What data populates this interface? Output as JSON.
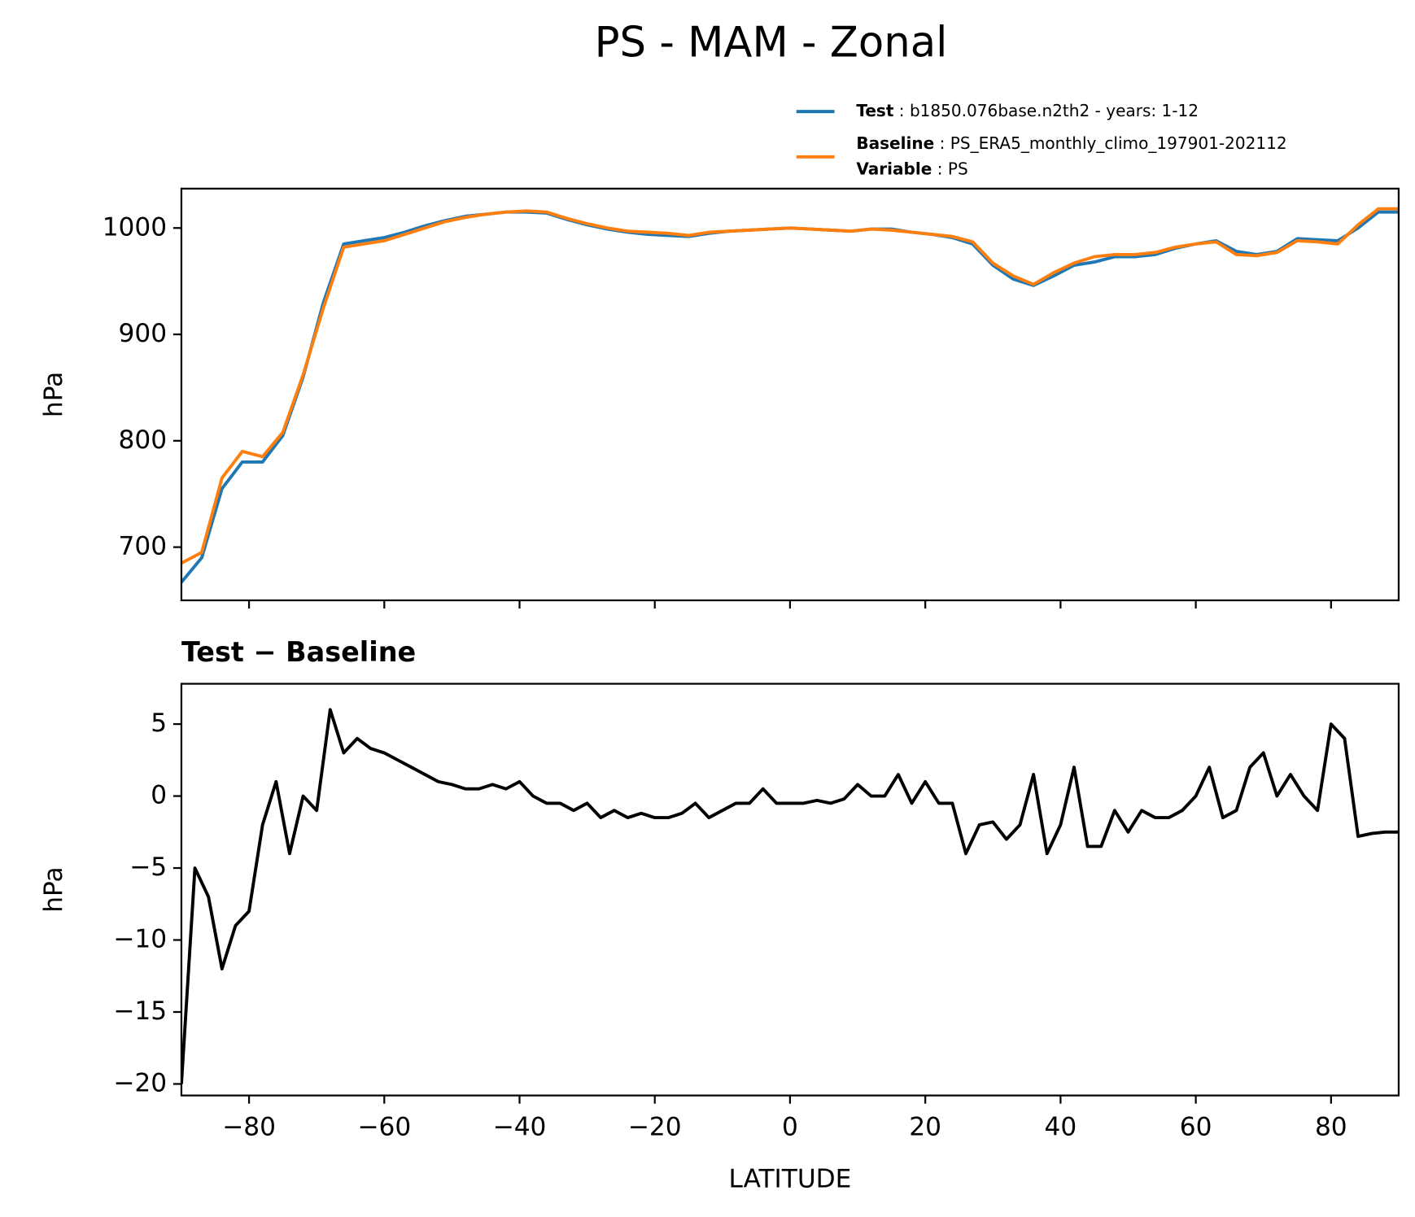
{
  "title": "PS - MAM - Zonal",
  "chart_data": [
    {
      "type": "line",
      "ylabel": "hPa",
      "xlim": [
        -90,
        90
      ],
      "ylim": [
        650,
        1037
      ],
      "xticks": [
        -80,
        -60,
        -40,
        -20,
        0,
        20,
        40,
        60,
        80
      ],
      "xtick_labels": false,
      "yticks": [
        700,
        800,
        900,
        1000
      ],
      "grid": false,
      "x": [
        -90,
        -87,
        -84,
        -81,
        -78,
        -75,
        -72,
        -69,
        -66,
        -63,
        -60,
        -57,
        -54,
        -51,
        -48,
        -45,
        -42,
        -39,
        -36,
        -33,
        -30,
        -27,
        -24,
        -21,
        -18,
        -15,
        -12,
        -9,
        -6,
        -3,
        0,
        3,
        6,
        9,
        12,
        15,
        18,
        21,
        24,
        27,
        30,
        33,
        36,
        39,
        42,
        45,
        48,
        51,
        54,
        57,
        60,
        63,
        66,
        69,
        72,
        75,
        78,
        81,
        84,
        87,
        90
      ],
      "series": [
        {
          "name": "Test",
          "label": "b1850.076base.n2th2 - years: 1-12",
          "color": "#1f77b4",
          "values": [
            667,
            690,
            755,
            780,
            780,
            805,
            860,
            930,
            985,
            988,
            991,
            996,
            1002,
            1007,
            1011,
            1013,
            1015,
            1015,
            1014,
            1008,
            1003,
            999,
            996,
            994,
            993,
            992,
            995,
            997,
            998,
            999,
            1000,
            999,
            998,
            997,
            999,
            999,
            996,
            994,
            991,
            985,
            965,
            952,
            946,
            955,
            965,
            968,
            973,
            973,
            975,
            981,
            985,
            988,
            978,
            975,
            978,
            990,
            989,
            988,
            1000,
            1015,
            1015
          ]
        },
        {
          "name": "Baseline",
          "label": "PS_ERA5_monthly_climo_197901-202112",
          "color": "#ff7f0e",
          "values": [
            685,
            695,
            765,
            790,
            785,
            808,
            862,
            925,
            982,
            985,
            988,
            994,
            1000,
            1006,
            1010,
            1013,
            1015,
            1016,
            1015,
            1009,
            1004,
            1000,
            997,
            996,
            995,
            993,
            996,
            997,
            998,
            999,
            1000,
            999,
            998,
            997,
            999,
            998,
            996,
            994,
            992,
            987,
            967,
            955,
            947,
            958,
            967,
            973,
            975,
            975,
            977,
            982,
            985,
            987,
            975,
            974,
            977,
            988,
            987,
            985,
            1003,
            1018,
            1018
          ]
        }
      ],
      "legend_note": {
        "name": "Variable",
        "label": "PS"
      }
    },
    {
      "type": "line",
      "title": "Test − Baseline",
      "ylabel": "hPa",
      "xlabel": "LATITUDE",
      "xlim": [
        -90,
        90
      ],
      "ylim": [
        -20.8,
        7.8
      ],
      "xticks": [
        {
          "value": -80,
          "label": "−80"
        },
        {
          "value": -60,
          "label": "−60"
        },
        {
          "value": -40,
          "label": "−40"
        },
        {
          "value": -20,
          "label": "−20"
        },
        0,
        20,
        40,
        60,
        80
      ],
      "yticks": [
        {
          "value": -20,
          "label": "−20"
        },
        {
          "value": -15,
          "label": "−15"
        },
        {
          "value": -10,
          "label": "−10"
        },
        {
          "value": -5,
          "label": "−5"
        },
        0,
        5
      ],
      "grid": false,
      "x": [
        -90,
        -88,
        -86,
        -84,
        -82,
        -80,
        -78,
        -76,
        -74,
        -72,
        -70,
        -68,
        -66,
        -64,
        -62,
        -60,
        -58,
        -56,
        -54,
        -52,
        -50,
        -48,
        -46,
        -44,
        -42,
        -40,
        -38,
        -36,
        -34,
        -32,
        -30,
        -28,
        -26,
        -24,
        -22,
        -20,
        -18,
        -16,
        -14,
        -12,
        -10,
        -8,
        -6,
        -4,
        -2,
        0,
        2,
        4,
        6,
        8,
        10,
        12,
        14,
        16,
        18,
        20,
        22,
        24,
        26,
        28,
        30,
        32,
        34,
        36,
        38,
        40,
        42,
        44,
        46,
        48,
        50,
        52,
        54,
        56,
        58,
        60,
        62,
        64,
        66,
        68,
        70,
        72,
        74,
        76,
        78,
        80,
        82,
        84,
        86,
        88,
        90
      ],
      "series": [
        {
          "color": "#000000",
          "values": [
            -20,
            -5,
            -7,
            -12,
            -9,
            -8,
            -2,
            1,
            -4,
            0,
            -1,
            6,
            3,
            4,
            3.3,
            3,
            2.5,
            2,
            1.5,
            1,
            0.8,
            0.5,
            0.5,
            0.8,
            0.5,
            1,
            0,
            -0.5,
            -0.5,
            -1,
            -0.5,
            -1.5,
            -1,
            -1.5,
            -1.2,
            -1.5,
            -1.5,
            -1.2,
            -0.5,
            -1.5,
            -1,
            -0.5,
            -0.5,
            0.5,
            -0.5,
            -0.5,
            -0.5,
            -0.3,
            -0.5,
            -0.2,
            0.8,
            0,
            0,
            1.5,
            -0.5,
            1,
            -0.5,
            -0.5,
            -4,
            -2,
            -1.8,
            -3,
            -2,
            1.5,
            -4,
            -2,
            2,
            -3.5,
            -3.5,
            -1,
            -2.5,
            -1,
            -1.5,
            -1.5,
            -1,
            0,
            2,
            -1.5,
            -1,
            2,
            3,
            0,
            1.5,
            0,
            -1,
            5,
            4,
            -2.8,
            -2.6,
            -2.5,
            -2.5
          ]
        }
      ]
    }
  ]
}
